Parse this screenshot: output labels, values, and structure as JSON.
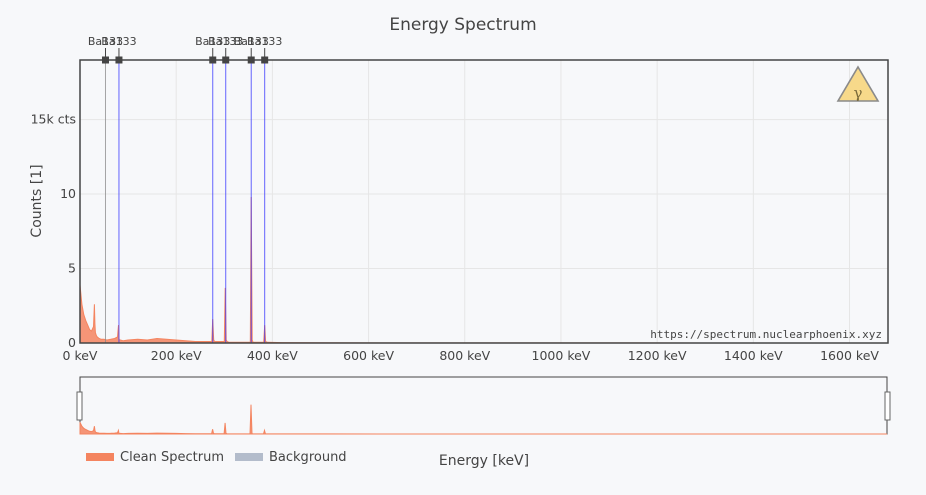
{
  "chart_data": {
    "type": "area",
    "title": "Energy Spectrum",
    "xlabel": "Energy [keV]",
    "ylabel": "Counts  [1]",
    "xlim": [
      0,
      1680
    ],
    "ylim": [
      0,
      19
    ],
    "x_ticks": [
      {
        "value": 0,
        "label": "0 keV"
      },
      {
        "value": 200,
        "label": "200 keV"
      },
      {
        "value": 400,
        "label": "400 keV"
      },
      {
        "value": 600,
        "label": "600 keV"
      },
      {
        "value": 800,
        "label": "800 keV"
      },
      {
        "value": 1000,
        "label": "1000 keV"
      },
      {
        "value": 1200,
        "label": "1200 keV"
      },
      {
        "value": 1400,
        "label": "1400 keV"
      },
      {
        "value": 1600,
        "label": "1600 keV"
      }
    ],
    "y_ticks": [
      {
        "value": 0,
        "label": "0"
      },
      {
        "value": 5,
        "label": "5"
      },
      {
        "value": 10,
        "label": "10"
      },
      {
        "value": 15,
        "label": "15k cts"
      }
    ],
    "grid": true,
    "legend_position": "bottom-left",
    "series": [
      {
        "name": "Clean Spectrum",
        "color": "#f4845f",
        "x": [
          0,
          4,
          8,
          12,
          16,
          20,
          24,
          28,
          30,
          31,
          32,
          34,
          36,
          40,
          44,
          50,
          56,
          64,
          72,
          78,
          80,
          81,
          82,
          84,
          90,
          100,
          120,
          140,
          160,
          180,
          200,
          220,
          240,
          260,
          270,
          274,
          276,
          278,
          280,
          290,
          300,
          302,
          304,
          306,
          310,
          330,
          350,
          354,
          356,
          358,
          360,
          370,
          380,
          382,
          384,
          386,
          390,
          420,
          500,
          700,
          900,
          1100,
          1300,
          1500,
          1680
        ],
        "values": [
          3.9,
          2.6,
          1.9,
          1.5,
          1.2,
          0.9,
          0.8,
          1.1,
          2.6,
          1.3,
          0.7,
          0.5,
          0.4,
          0.3,
          0.25,
          0.25,
          0.2,
          0.25,
          0.3,
          0.4,
          1.2,
          0.3,
          0.2,
          0.2,
          0.15,
          0.2,
          0.25,
          0.2,
          0.3,
          0.25,
          0.2,
          0.15,
          0.1,
          0.1,
          0.1,
          0.1,
          1.6,
          0.2,
          0.1,
          0.1,
          0.1,
          3.7,
          0.2,
          0.1,
          0.05,
          0.05,
          0.05,
          0.05,
          9.8,
          0.2,
          0.05,
          0.05,
          0.05,
          0.05,
          1.2,
          0.1,
          0.05,
          0.03,
          0.02,
          0.01,
          0.01,
          0.01,
          0.0,
          0.0,
          0.0
        ]
      },
      {
        "name": "Background",
        "color": "#b3bccb",
        "x": [],
        "values": []
      }
    ],
    "peaks": [
      {
        "x": 53,
        "label": "Ba133",
        "color": "#888888"
      },
      {
        "x": 81,
        "label": "Ba133",
        "color": "#3333ff"
      },
      {
        "x": 276,
        "label": "Ba133",
        "color": "#3333ff"
      },
      {
        "x": 303,
        "label": "Ba133",
        "color": "#3333ff"
      },
      {
        "x": 356,
        "label": "Ba133",
        "color": "#3333ff"
      },
      {
        "x": 384,
        "label": "Ba133",
        "color": "#3333ff"
      }
    ],
    "watermark": "https://spectrum.nuclearphoenix.xyz",
    "badge": "γ"
  }
}
